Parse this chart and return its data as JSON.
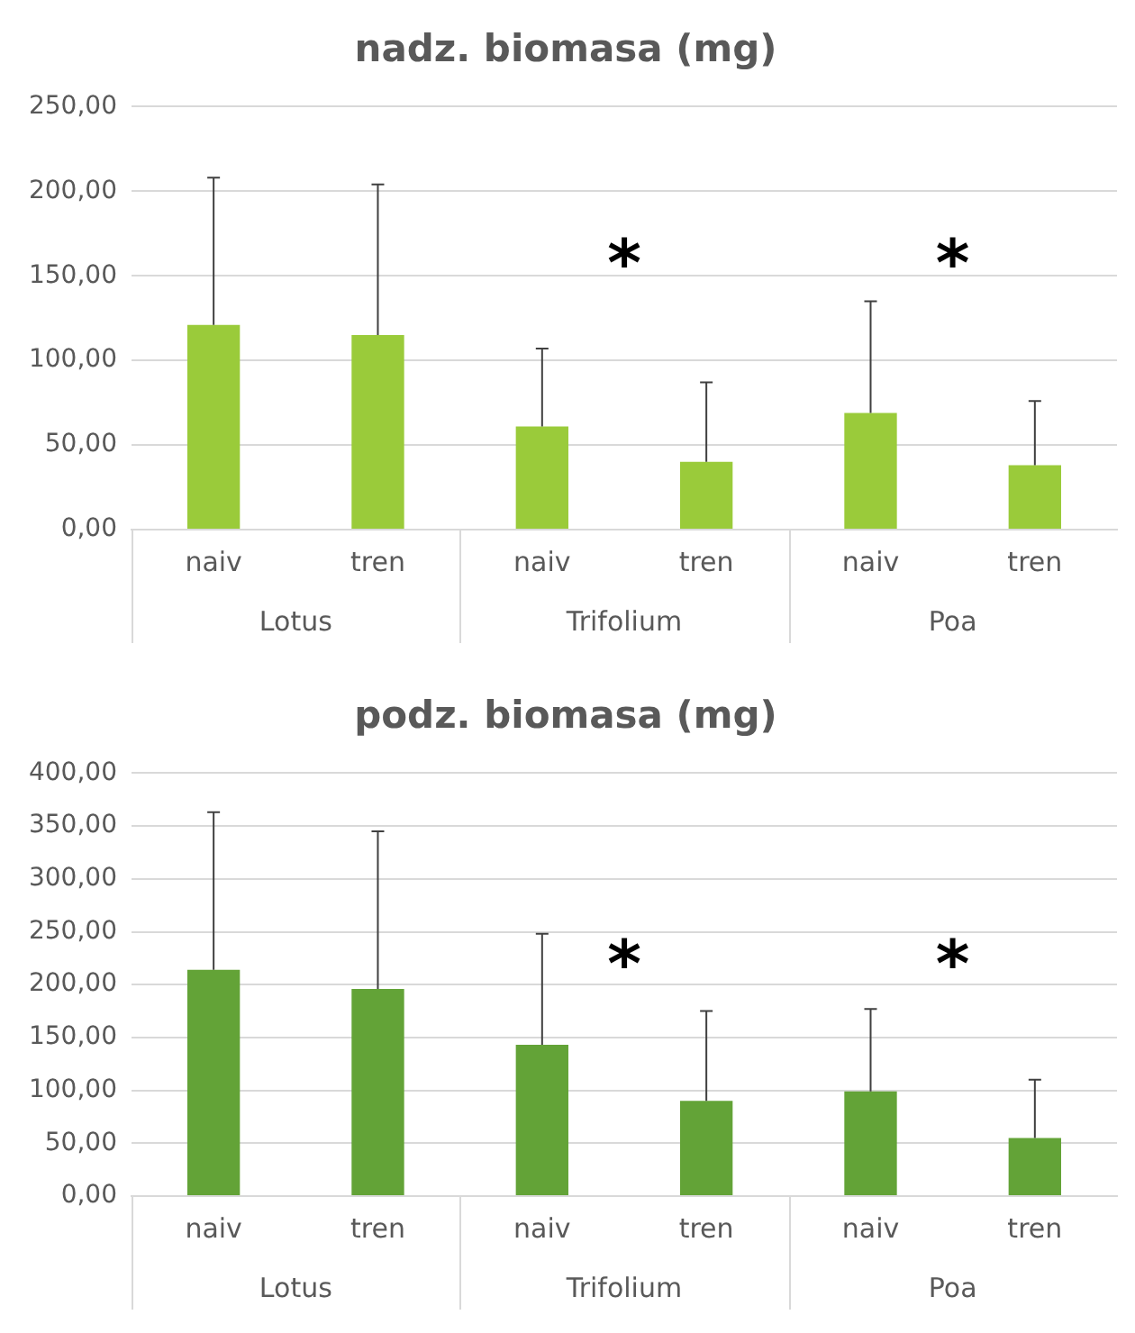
{
  "chart_data": [
    {
      "type": "bar",
      "title": "nadz. biomasa (mg)",
      "categories": [
        "naiv",
        "tren",
        "naiv",
        "tren",
        "naiv",
        "tren"
      ],
      "color": "#9acb3a",
      "values": [
        121,
        115,
        61,
        40,
        69,
        38
      ],
      "errors": [
        [
          121,
          208
        ],
        [
          115,
          204
        ],
        [
          61,
          107
        ],
        [
          40,
          87
        ],
        [
          69,
          135
        ],
        [
          38,
          76
        ]
      ],
      "ylim": [
        0,
        250
      ],
      "yticks": [
        {
          "value": 0,
          "label": "0,00"
        },
        {
          "value": 50,
          "label": "50,00"
        },
        {
          "value": 100,
          "label": "100,00"
        },
        {
          "value": 150,
          "label": "150,00"
        },
        {
          "value": 200,
          "label": "200,00"
        },
        {
          "value": 250,
          "label": "250,00"
        }
      ],
      "grid": "y",
      "legend": false,
      "annotations": [
        "Lotus",
        "Trifolium",
        "Poa",
        "*",
        "*"
      ]
    },
    {
      "type": "bar",
      "title": "podz. biomasa (mg)",
      "categories": [
        "naiv",
        "tren",
        "naiv",
        "tren",
        "naiv",
        "tren"
      ],
      "color": "#63a337",
      "values": [
        214,
        196,
        143,
        90,
        99,
        55
      ],
      "errors": [
        [
          214,
          363
        ],
        [
          196,
          345
        ],
        [
          143,
          248
        ],
        [
          90,
          175
        ],
        [
          99,
          177
        ],
        [
          55,
          110
        ]
      ],
      "ylim": [
        0,
        400
      ],
      "yticks": [
        {
          "value": 0,
          "label": "0,00"
        },
        {
          "value": 50,
          "label": "50,00"
        },
        {
          "value": 100,
          "label": "100,00"
        },
        {
          "value": 150,
          "label": "150,00"
        },
        {
          "value": 200,
          "label": "200,00"
        },
        {
          "value": 250,
          "label": "250,00"
        },
        {
          "value": 300,
          "label": "300,00"
        },
        {
          "value": 350,
          "label": "350,00"
        },
        {
          "value": 400,
          "label": "400,00"
        }
      ],
      "grid": "y",
      "legend": false,
      "annotations": [
        "Lotus",
        "Trifolium",
        "Poa",
        "*",
        "*"
      ]
    }
  ]
}
